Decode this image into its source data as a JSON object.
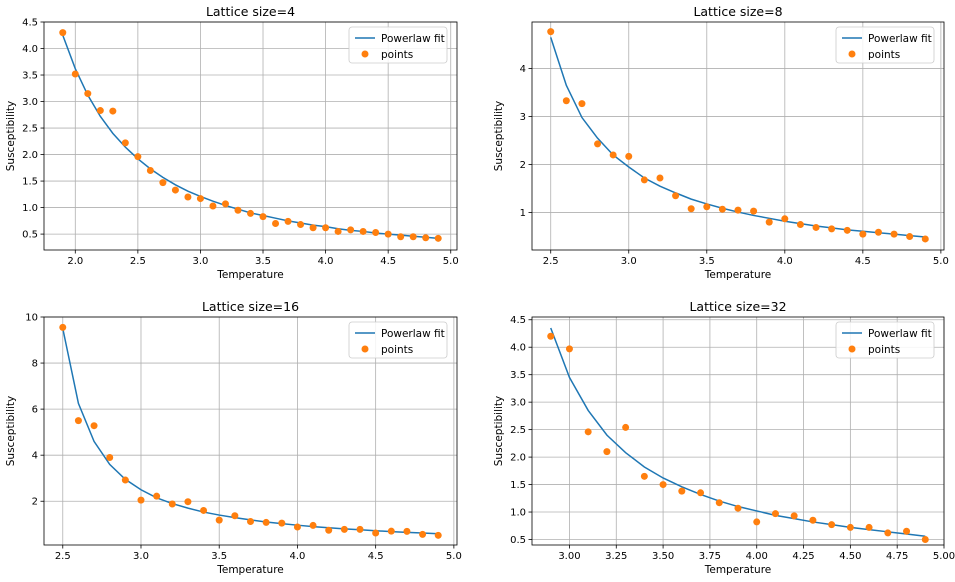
{
  "colors": {
    "fit": "#1f77b4",
    "points": "#ff7f0e",
    "grid": "#b0b0b0",
    "axes": "#000000",
    "legend_border": "#cccccc"
  },
  "chart_data": [
    {
      "type": "line",
      "title": "Lattice size=4",
      "xlabel": "Temperature",
      "ylabel": "Susceptibility",
      "xlim": [
        1.75,
        5.05
      ],
      "ylim": [
        0.2,
        4.5
      ],
      "xticks": [
        2.0,
        2.5,
        3.0,
        3.5,
        4.0,
        4.5,
        5.0
      ],
      "xtick_labels": [
        "2.0",
        "2.5",
        "3.0",
        "3.5",
        "4.0",
        "4.5",
        "5.0"
      ],
      "yticks": [
        0.5,
        1.0,
        1.5,
        2.0,
        2.5,
        3.0,
        3.5,
        4.0,
        4.5
      ],
      "ytick_labels": [
        "0.5",
        "1.0",
        "1.5",
        "2.0",
        "2.5",
        "3.0",
        "3.5",
        "4.0",
        "4.5"
      ],
      "grid": true,
      "legend": {
        "position": "top-right",
        "entries": [
          "Powerlaw fit",
          "points"
        ]
      },
      "series": [
        {
          "name": "Powerlaw fit",
          "kind": "line",
          "x": [
            1.9,
            2.0,
            2.1,
            2.2,
            2.3,
            2.4,
            2.5,
            2.6,
            2.7,
            2.8,
            2.9,
            3.0,
            3.1,
            3.2,
            3.3,
            3.4,
            3.5,
            3.6,
            3.7,
            3.8,
            3.9,
            4.0,
            4.1,
            4.2,
            4.3,
            4.4,
            4.5,
            4.6,
            4.7,
            4.8,
            4.9
          ],
          "y": [
            4.25,
            3.62,
            3.12,
            2.72,
            2.4,
            2.14,
            1.92,
            1.73,
            1.57,
            1.43,
            1.31,
            1.21,
            1.12,
            1.04,
            0.97,
            0.9,
            0.85,
            0.8,
            0.75,
            0.71,
            0.67,
            0.64,
            0.6,
            0.57,
            0.55,
            0.52,
            0.5,
            0.48,
            0.46,
            0.44,
            0.42
          ]
        },
        {
          "name": "points",
          "kind": "scatter",
          "x": [
            1.9,
            2.0,
            2.1,
            2.2,
            2.3,
            2.4,
            2.5,
            2.6,
            2.7,
            2.8,
            2.9,
            3.0,
            3.1,
            3.2,
            3.3,
            3.4,
            3.5,
            3.6,
            3.7,
            3.8,
            3.9,
            4.0,
            4.1,
            4.2,
            4.3,
            4.4,
            4.5,
            4.6,
            4.7,
            4.8,
            4.9
          ],
          "y": [
            4.3,
            3.52,
            3.15,
            2.83,
            2.82,
            2.22,
            1.96,
            1.7,
            1.47,
            1.33,
            1.2,
            1.17,
            1.03,
            1.07,
            0.95,
            0.89,
            0.83,
            0.7,
            0.74,
            0.68,
            0.62,
            0.62,
            0.55,
            0.58,
            0.55,
            0.53,
            0.5,
            0.45,
            0.45,
            0.43,
            0.42
          ]
        }
      ]
    },
    {
      "type": "line",
      "title": "Lattice size=8",
      "xlabel": "Temperature",
      "ylabel": "Susceptibility",
      "xlim": [
        2.38,
        5.02
      ],
      "ylim": [
        0.22,
        4.97
      ],
      "xticks": [
        2.5,
        3.0,
        3.5,
        4.0,
        4.5,
        5.0
      ],
      "xtick_labels": [
        "2.5",
        "3.0",
        "3.5",
        "4.0",
        "4.5",
        "5.0"
      ],
      "yticks": [
        1,
        2,
        3,
        4
      ],
      "ytick_labels": [
        "1",
        "2",
        "3",
        "4"
      ],
      "grid": true,
      "legend": {
        "position": "top-right",
        "entries": [
          "Powerlaw fit",
          "points"
        ]
      },
      "series": [
        {
          "name": "Powerlaw fit",
          "kind": "line",
          "x": [
            2.5,
            2.6,
            2.7,
            2.8,
            2.9,
            3.0,
            3.1,
            3.2,
            3.3,
            3.4,
            3.5,
            3.6,
            3.7,
            3.8,
            3.9,
            4.0,
            4.1,
            4.2,
            4.3,
            4.4,
            4.5,
            4.6,
            4.7,
            4.8,
            4.9
          ],
          "y": [
            4.65,
            3.65,
            2.98,
            2.55,
            2.2,
            1.95,
            1.72,
            1.55,
            1.41,
            1.28,
            1.18,
            1.09,
            1.01,
            0.94,
            0.88,
            0.82,
            0.77,
            0.72,
            0.68,
            0.64,
            0.61,
            0.58,
            0.55,
            0.52,
            0.49
          ]
        },
        {
          "name": "points",
          "kind": "scatter",
          "x": [
            2.5,
            2.6,
            2.7,
            2.8,
            2.9,
            3.0,
            3.1,
            3.2,
            3.3,
            3.4,
            3.5,
            3.6,
            3.7,
            3.8,
            3.9,
            4.0,
            4.1,
            4.2,
            4.3,
            4.4,
            4.5,
            4.6,
            4.7,
            4.8,
            4.9
          ],
          "y": [
            4.77,
            3.33,
            3.27,
            2.43,
            2.2,
            2.17,
            1.68,
            1.72,
            1.35,
            1.08,
            1.12,
            1.07,
            1.05,
            1.03,
            0.8,
            0.87,
            0.75,
            0.69,
            0.66,
            0.63,
            0.55,
            0.59,
            0.55,
            0.5,
            0.45
          ]
        }
      ]
    },
    {
      "type": "line",
      "title": "Lattice size=16",
      "xlabel": "Temperature",
      "ylabel": "Susceptibility",
      "xlim": [
        2.38,
        5.02
      ],
      "ylim": [
        0.1,
        10.0
      ],
      "xticks": [
        2.5,
        3.0,
        3.5,
        4.0,
        4.5,
        5.0
      ],
      "xtick_labels": [
        "2.5",
        "3.0",
        "3.5",
        "4.0",
        "4.5",
        "5.0"
      ],
      "yticks": [
        2,
        4,
        6,
        8,
        10
      ],
      "ytick_labels": [
        "2",
        "4",
        "6",
        "8",
        "10"
      ],
      "grid": true,
      "legend": {
        "position": "top-right",
        "entries": [
          "Powerlaw fit",
          "points"
        ]
      },
      "series": [
        {
          "name": "Powerlaw fit",
          "kind": "line",
          "x": [
            2.5,
            2.6,
            2.7,
            2.8,
            2.9,
            3.0,
            3.1,
            3.2,
            3.3,
            3.4,
            3.5,
            3.6,
            3.7,
            3.8,
            3.9,
            4.0,
            4.1,
            4.2,
            4.3,
            4.4,
            4.5,
            4.6,
            4.7,
            4.8,
            4.9
          ],
          "y": [
            9.5,
            6.25,
            4.6,
            3.6,
            2.95,
            2.5,
            2.15,
            1.9,
            1.7,
            1.53,
            1.4,
            1.29,
            1.19,
            1.1,
            1.03,
            0.96,
            0.9,
            0.85,
            0.8,
            0.76,
            0.72,
            0.68,
            0.65,
            0.62,
            0.59
          ]
        },
        {
          "name": "points",
          "kind": "scatter",
          "x": [
            2.5,
            2.6,
            2.7,
            2.8,
            2.9,
            3.0,
            3.1,
            3.2,
            3.3,
            3.4,
            3.5,
            3.6,
            3.7,
            3.8,
            3.9,
            4.0,
            4.1,
            4.2,
            4.3,
            4.4,
            4.5,
            4.6,
            4.7,
            4.8,
            4.9
          ],
          "y": [
            9.55,
            5.5,
            5.28,
            3.9,
            2.92,
            2.05,
            2.22,
            1.88,
            1.98,
            1.6,
            1.18,
            1.37,
            1.12,
            1.08,
            1.05,
            0.88,
            0.95,
            0.74,
            0.78,
            0.78,
            0.62,
            0.7,
            0.69,
            0.56,
            0.52
          ]
        }
      ]
    },
    {
      "type": "line",
      "title": "Lattice size=32",
      "xlabel": "Temperature",
      "ylabel": "Susceptibility",
      "xlim": [
        2.8,
        5.0
      ],
      "ylim": [
        0.4,
        4.55
      ],
      "xticks": [
        3.0,
        3.25,
        3.5,
        3.75,
        4.0,
        4.25,
        4.5,
        4.75,
        5.0
      ],
      "xtick_labels": [
        "3.00",
        "3.25",
        "3.50",
        "3.75",
        "4.00",
        "4.25",
        "4.50",
        "4.75",
        "5.00"
      ],
      "yticks": [
        0.5,
        1.0,
        1.5,
        2.0,
        2.5,
        3.0,
        3.5,
        4.0,
        4.5
      ],
      "ytick_labels": [
        "0.5",
        "1.0",
        "1.5",
        "2.0",
        "2.5",
        "3.0",
        "3.5",
        "4.0",
        "4.5"
      ],
      "grid": true,
      "legend": {
        "position": "top-right",
        "entries": [
          "Powerlaw fit",
          "points"
        ]
      },
      "series": [
        {
          "name": "Powerlaw fit",
          "kind": "line",
          "x": [
            2.9,
            3.0,
            3.1,
            3.2,
            3.3,
            3.4,
            3.5,
            3.6,
            3.7,
            3.8,
            3.9,
            4.0,
            4.1,
            4.2,
            4.3,
            4.4,
            4.5,
            4.6,
            4.7,
            4.8,
            4.9
          ],
          "y": [
            4.35,
            3.45,
            2.85,
            2.4,
            2.08,
            1.82,
            1.62,
            1.46,
            1.32,
            1.2,
            1.1,
            1.02,
            0.94,
            0.88,
            0.82,
            0.77,
            0.72,
            0.68,
            0.64,
            0.6,
            0.56
          ]
        },
        {
          "name": "points",
          "kind": "scatter",
          "x": [
            2.9,
            3.0,
            3.1,
            3.2,
            3.3,
            3.4,
            3.5,
            3.6,
            3.7,
            3.8,
            3.9,
            4.0,
            4.1,
            4.2,
            4.3,
            4.4,
            4.5,
            4.6,
            4.7,
            4.8,
            4.9
          ],
          "y": [
            4.2,
            3.97,
            2.46,
            2.1,
            2.54,
            1.65,
            1.5,
            1.38,
            1.35,
            1.17,
            1.07,
            0.82,
            0.97,
            0.93,
            0.85,
            0.77,
            0.72,
            0.72,
            0.62,
            0.65,
            0.5
          ]
        }
      ]
    }
  ]
}
